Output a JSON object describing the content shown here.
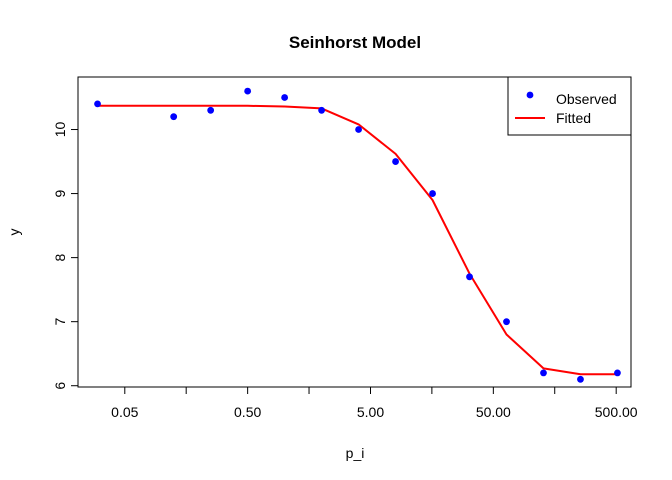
{
  "chart_data": {
    "type": "scatter",
    "title": "Seinhorst Model",
    "xlabel": "p_i",
    "ylabel": "y",
    "x_scale": "log10",
    "xlim": [
      0.0208,
      660
    ],
    "ylim": [
      5.98,
      10.82
    ],
    "x_ticks": [
      {
        "value": 0.05,
        "label": "0.05"
      },
      {
        "value": 0.158,
        "label": ""
      },
      {
        "value": 0.5,
        "label": "0.50"
      },
      {
        "value": 1.58,
        "label": ""
      },
      {
        "value": 5,
        "label": "5.00"
      },
      {
        "value": 15.8,
        "label": ""
      },
      {
        "value": 50,
        "label": "50.00"
      },
      {
        "value": 158,
        "label": ""
      },
      {
        "value": 500,
        "label": "500.00"
      }
    ],
    "y_ticks": [
      {
        "value": 6,
        "label": "6"
      },
      {
        "value": 7,
        "label": "7"
      },
      {
        "value": 8,
        "label": "8"
      },
      {
        "value": 9,
        "label": "9"
      },
      {
        "value": 10,
        "label": "10"
      }
    ],
    "series": [
      {
        "name": "Observed",
        "kind": "points",
        "color": "#0000ff",
        "x": [
          0.03,
          0.125,
          0.25,
          0.5,
          1,
          2,
          4,
          8,
          16,
          32,
          64,
          128,
          256,
          512
        ],
        "y": [
          10.4,
          10.2,
          10.3,
          10.6,
          10.5,
          10.3,
          10.0,
          9.5,
          9.0,
          7.7,
          7.0,
          6.2,
          6.1,
          6.2
        ]
      },
      {
        "name": "Fitted",
        "kind": "line",
        "color": "#ff0000",
        "x": [
          0.03,
          0.125,
          0.25,
          0.5,
          1,
          2,
          4,
          8,
          16,
          32,
          64,
          128,
          256,
          512
        ],
        "y": [
          10.37,
          10.37,
          10.37,
          10.37,
          10.36,
          10.33,
          10.08,
          9.62,
          8.9,
          7.75,
          6.8,
          6.27,
          6.18,
          6.18
        ]
      }
    ],
    "legend": {
      "position": "top-right",
      "entries": [
        "Observed",
        "Fitted"
      ]
    }
  }
}
